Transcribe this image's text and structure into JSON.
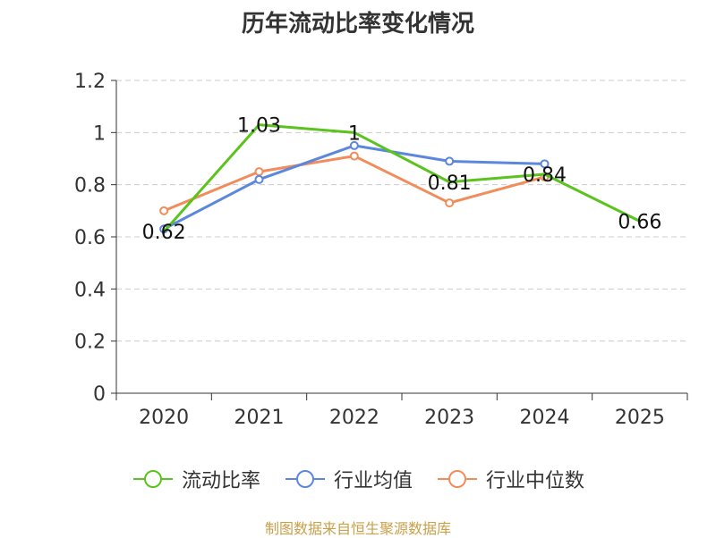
{
  "chart_data": {
    "type": "line",
    "title": "历年流动比率变化情况",
    "categories": [
      "2020",
      "2021",
      "2022",
      "2023",
      "2024",
      "2025"
    ],
    "y_ticks": [
      "0",
      "0.2",
      "0.4",
      "0.6",
      "0.8",
      "1",
      "1.2"
    ],
    "ylim": [
      0,
      1.2
    ],
    "grid": true,
    "series": [
      {
        "name": "流动比率",
        "color": "#5bc31e",
        "values": [
          0.62,
          1.03,
          1.0,
          0.81,
          0.84,
          0.66
        ],
        "labels": [
          "0.62",
          "1.03",
          "1",
          "0.81",
          "0.84",
          "0.66"
        ]
      },
      {
        "name": "行业均值",
        "color": "#5b87dc",
        "values": [
          0.63,
          0.82,
          0.95,
          0.89,
          0.88,
          null
        ]
      },
      {
        "name": "行业中位数",
        "color": "#f28c5a",
        "values": [
          0.7,
          0.85,
          0.91,
          0.73,
          0.83,
          null
        ]
      }
    ],
    "legend": [
      "流动比率",
      "行业均值",
      "行业中位数"
    ],
    "source": "制图数据来自恒生聚源数据库"
  }
}
